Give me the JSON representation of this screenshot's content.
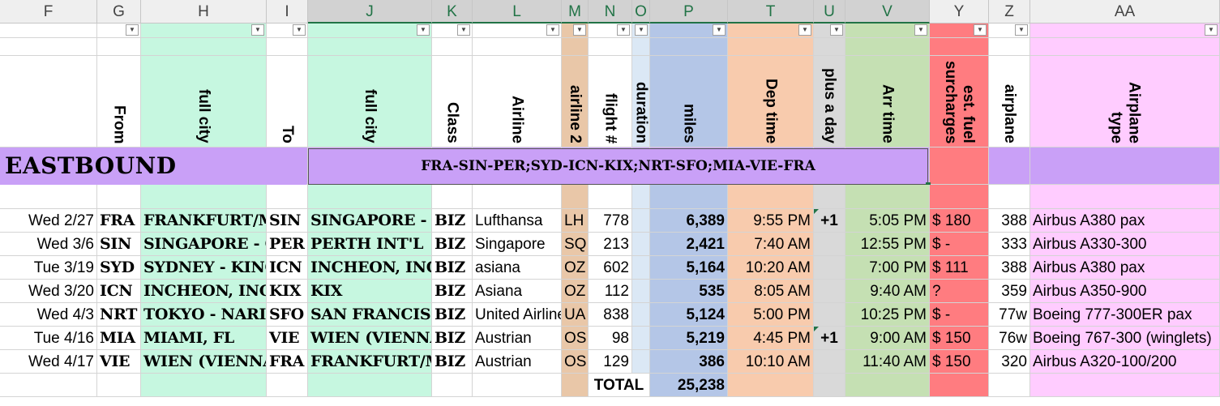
{
  "columns": [
    "F",
    "G",
    "H",
    "I",
    "J",
    "K",
    "L",
    "M",
    "N",
    "O",
    "P",
    "T",
    "U",
    "V",
    "Y",
    "Z",
    "AA"
  ],
  "headers": {
    "from": "From",
    "full_city_h": "full city",
    "to": "To",
    "full_city_j": "full city",
    "class": "Class",
    "airline": "Airline",
    "airline2": "airline 2",
    "flight": "flight #",
    "duration": "duration",
    "miles": "miles",
    "dep_time": "Dep time",
    "plus_day": "plus a day",
    "arr_time": "Arr time",
    "fuel": "est. fuel surcharges",
    "airplane": "airplane",
    "airplane_type": "Airplane type"
  },
  "section": {
    "label": "EASTBOUND",
    "route": "FRA-SIN-PER;SYD-ICN-KIX;NRT-SFO;MIA-VIE-FRA"
  },
  "rows": [
    {
      "date": "Wed 2/27",
      "from": "FRA",
      "from_city": "FRANKFURT/MAIN",
      "to": "SIN",
      "to_city": "SINGAPORE - CHANGI",
      "class": "BIZ",
      "airline": "Lufthansa",
      "code": "LH",
      "flight": "778",
      "miles": "6,389",
      "dep": "9:55 PM",
      "plus": "+1",
      "arr": "5:05 PM",
      "fuel": "$ 180",
      "plane": "388",
      "type": "Airbus A380 pax"
    },
    {
      "date": "Wed 3/6",
      "from": "SIN",
      "from_city": "SINGAPORE - CHANGI",
      "to": "PER",
      "to_city": "PERTH INT'L",
      "class": "BIZ",
      "airline": "Singapore",
      "code": "SQ",
      "flight": "213",
      "miles": "2,421",
      "dep": "7:40 AM",
      "plus": "",
      "arr": "12:55 PM",
      "fuel": "$  -",
      "plane": "333",
      "type": "Airbus A330-300"
    },
    {
      "date": "Tue 3/19",
      "from": "SYD",
      "from_city": "SYDNEY - KINGSFORD",
      "to": "ICN",
      "to_city": "INCHEON, INCHEON",
      "class": "BIZ",
      "airline": "asiana",
      "code": "OZ",
      "flight": "602",
      "miles": "5,164",
      "dep": "10:20 AM",
      "plus": "",
      "arr": "7:00 PM",
      "fuel": "$ 111",
      "plane": "388",
      "type": "Airbus A380 pax"
    },
    {
      "date": "Wed 3/20",
      "from": "ICN",
      "from_city": "INCHEON, INCHEON",
      "to": "KIX",
      "to_city": "KIX",
      "class": "BIZ",
      "airline": "Asiana",
      "code": "OZ",
      "flight": "112",
      "miles": "535",
      "dep": "8:05 AM",
      "plus": "",
      "arr": "9:40 AM",
      "fuel": "?",
      "plane": "359",
      "type": "Airbus A350-900"
    },
    {
      "date": "Wed 4/3",
      "from": "NRT",
      "from_city": "TOKYO - NARITA",
      "to": "SFO",
      "to_city": "SAN FRANCISCO",
      "class": "BIZ",
      "airline": "United Airlines",
      "code": "UA",
      "flight": "838",
      "miles": "5,124",
      "dep": "5:00 PM",
      "plus": "",
      "arr": "10:25 PM",
      "fuel": "$  -",
      "plane": "77w",
      "type": "Boeing 777-300ER pax"
    },
    {
      "date": "Tue 4/16",
      "from": "MIA",
      "from_city": "MIAMI, FL",
      "to": "VIE",
      "to_city": "WIEN (VIENNA)",
      "class": "BIZ",
      "airline": "Austrian",
      "code": "OS",
      "flight": "98",
      "miles": "5,219",
      "dep": "4:45 PM",
      "plus": "+1",
      "arr": "9:00 AM",
      "fuel": "$ 150",
      "plane": "76w",
      "type": "Boeing 767-300 (winglets)"
    },
    {
      "date": "Wed 4/17",
      "from": "VIE",
      "from_city": "WIEN (VIENNA)",
      "to": "FRA",
      "to_city": "FRANKFURT/MAIN",
      "class": "BIZ",
      "airline": "Austrian",
      "code": "OS",
      "flight": "129",
      "miles": "386",
      "dep": "10:10 AM",
      "plus": "",
      "arr": "11:40 AM",
      "fuel": "$ 150",
      "plane": "320",
      "type": "Airbus A320-100/200"
    }
  ],
  "total": {
    "label": "TOTAL",
    "miles": "25,238"
  }
}
